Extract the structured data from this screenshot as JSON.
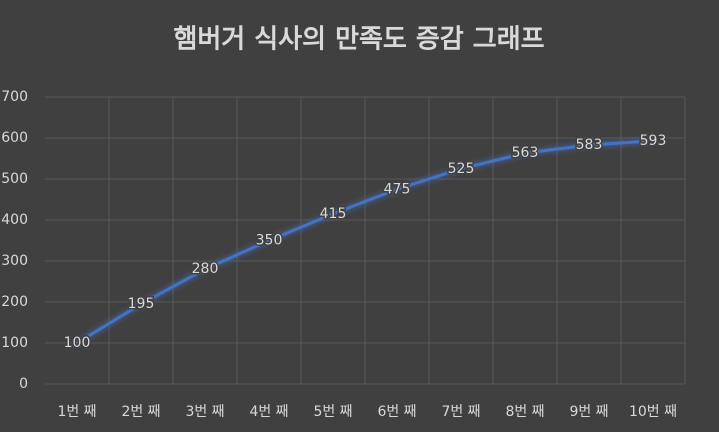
{
  "chart_data": {
    "type": "line",
    "title": "햄버거 식사의 만족도 증감 그래프",
    "categories": [
      "1번 째",
      "2번 째",
      "3번 째",
      "4번 째",
      "5번 째",
      "6번 째",
      "7번 째",
      "8번 째",
      "9번 째",
      "10번 째"
    ],
    "values": [
      100,
      195,
      280,
      350,
      415,
      475,
      525,
      563,
      583,
      593
    ],
    "color": "#4472c4",
    "ylim": [
      0,
      700
    ],
    "yticks": [
      0,
      100,
      200,
      300,
      400,
      500,
      600,
      700
    ],
    "grid": true,
    "data_labels": true
  }
}
